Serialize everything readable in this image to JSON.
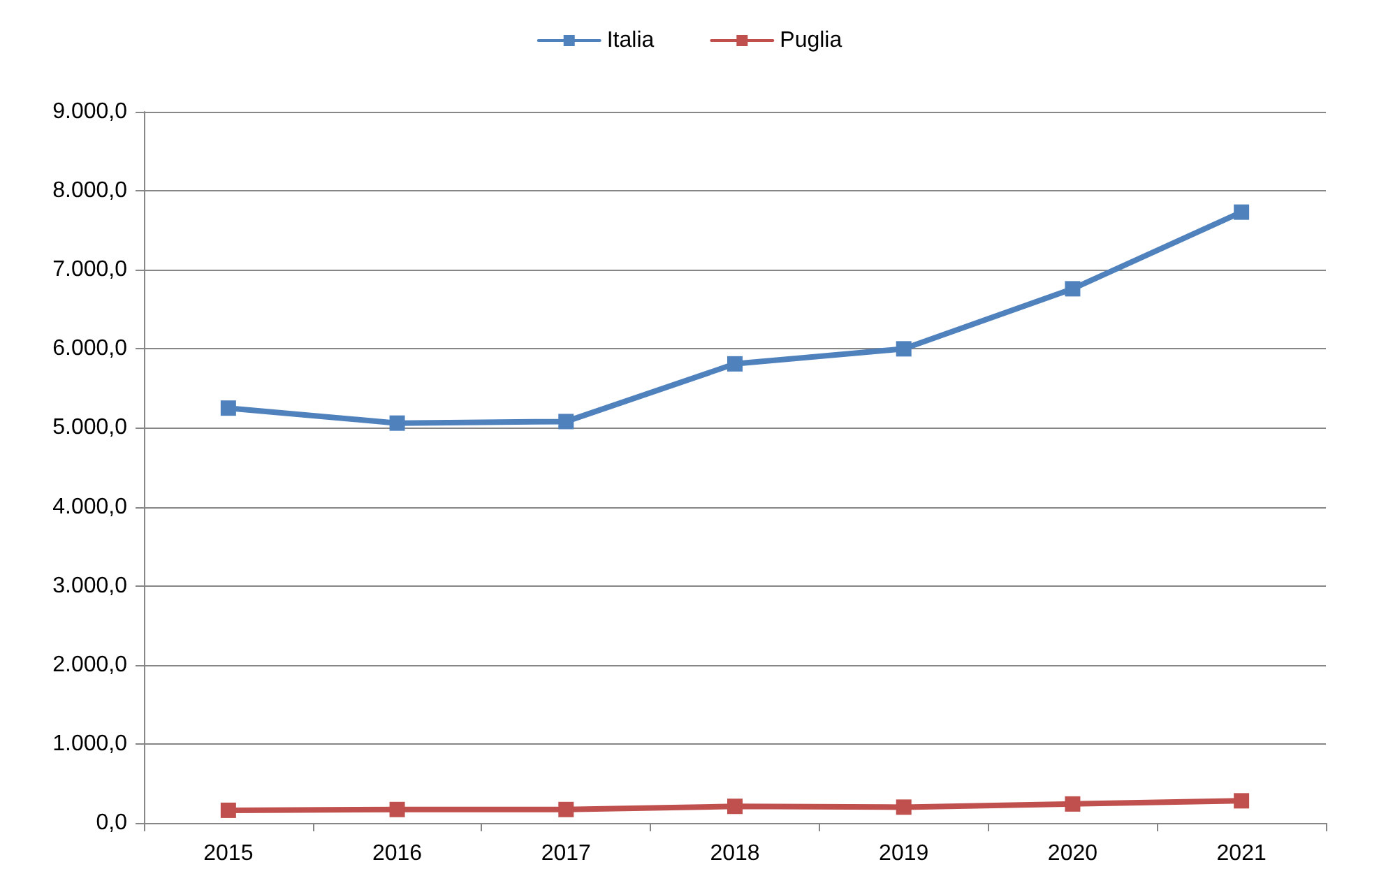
{
  "chart_data": {
    "type": "line",
    "categories": [
      "2015",
      "2016",
      "2017",
      "2018",
      "2019",
      "2020",
      "2021"
    ],
    "series": [
      {
        "name": "Italia",
        "color": "#4f81bd",
        "values": [
          5250,
          5060,
          5080,
          5810,
          6000,
          6760,
          7730
        ]
      },
      {
        "name": "Puglia",
        "color": "#c0504d",
        "values": [
          160,
          170,
          170,
          210,
          200,
          240,
          280
        ]
      }
    ],
    "ylim": [
      0,
      9000
    ],
    "yticks": [
      {
        "value": 0,
        "label": "0,0"
      },
      {
        "value": 1000,
        "label": "1.000,0"
      },
      {
        "value": 2000,
        "label": "2.000,0"
      },
      {
        "value": 3000,
        "label": "3.000,0"
      },
      {
        "value": 4000,
        "label": "4.000,0"
      },
      {
        "value": 5000,
        "label": "5.000,0"
      },
      {
        "value": 6000,
        "label": "6.000,0"
      },
      {
        "value": 7000,
        "label": "7.000,0"
      },
      {
        "value": 8000,
        "label": "8.000,0"
      },
      {
        "value": 9000,
        "label": "9.000,0"
      }
    ],
    "grid": "y",
    "legend": "top",
    "marker": "square",
    "line_style": "solid"
  }
}
